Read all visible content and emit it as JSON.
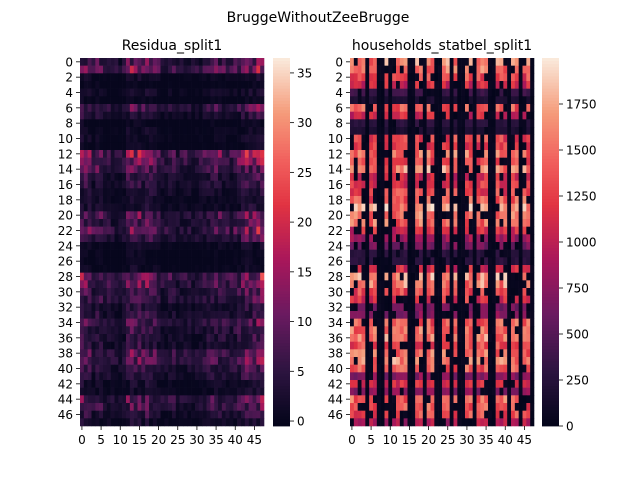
{
  "figure": {
    "suptitle": "BruggeWithoutZeeBrugge"
  },
  "chart_data": [
    {
      "type": "heatmap",
      "title": "Residua_split1",
      "xlabel": "",
      "ylabel": "",
      "rows": 48,
      "cols": 48,
      "x_tick_labels": [
        "0",
        "5",
        "10",
        "15",
        "20",
        "25",
        "30",
        "35",
        "40",
        "45"
      ],
      "y_tick_labels": [
        "0",
        "2",
        "4",
        "6",
        "8",
        "10",
        "12",
        "14",
        "16",
        "18",
        "20",
        "22",
        "24",
        "26",
        "28",
        "30",
        "32",
        "34",
        "36",
        "38",
        "40",
        "42",
        "44",
        "46"
      ],
      "vmin": -0.5,
      "vmax": 36.5,
      "colorbar_ticks": [
        0,
        5,
        10,
        15,
        20,
        25,
        30,
        35
      ],
      "colormap": "rocket",
      "row_levels": [
        12,
        16,
        4,
        3,
        5,
        3,
        12,
        7,
        3,
        4,
        4,
        3,
        18,
        16,
        13,
        9,
        8,
        7,
        5,
        6,
        14,
        12,
        16,
        10,
        4,
        3,
        3,
        4,
        16,
        14,
        11,
        11,
        7,
        8,
        12,
        10,
        9,
        8,
        14,
        13,
        10,
        8,
        5,
        5,
        13,
        11,
        8,
        5
      ],
      "col_levels": [
        1.1,
        1.0,
        0.9,
        0.6,
        0.9,
        0.8,
        0.5,
        0.6,
        0.5,
        0.5,
        0.4,
        0.5,
        1.0,
        1.1,
        1.0,
        1.1,
        0.9,
        1.1,
        0.9,
        0.8,
        0.7,
        0.5,
        0.5,
        0.6,
        0.6,
        0.4,
        0.5,
        0.5,
        0.5,
        0.4,
        0.5,
        0.5,
        0.6,
        0.7,
        0.8,
        0.8,
        0.8,
        0.7,
        0.6,
        0.6,
        0.7,
        0.8,
        0.9,
        1.1,
        1.0,
        1.0,
        1.2,
        1.3
      ]
    },
    {
      "type": "heatmap",
      "title": "households_statbel_split1",
      "xlabel": "",
      "ylabel": "",
      "rows": 48,
      "cols": 48,
      "x_tick_labels": [
        "0",
        "5",
        "10",
        "15",
        "20",
        "25",
        "30",
        "35",
        "40",
        "45"
      ],
      "y_tick_labels": [
        "0",
        "2",
        "4",
        "6",
        "8",
        "10",
        "12",
        "14",
        "16",
        "18",
        "20",
        "22",
        "24",
        "26",
        "28",
        "30",
        "32",
        "34",
        "36",
        "38",
        "40",
        "42",
        "44",
        "46"
      ],
      "vmin": 0,
      "vmax": 2000,
      "colorbar_ticks": [
        0,
        250,
        500,
        750,
        1000,
        1250,
        1500,
        1750
      ],
      "colormap": "rocket",
      "row_levels": [
        1700,
        1600,
        1400,
        1200,
        400,
        200,
        1500,
        1200,
        300,
        200,
        1400,
        1300,
        1600,
        1500,
        1700,
        1200,
        1300,
        1400,
        1500,
        1800,
        1700,
        1600,
        1200,
        900,
        700,
        300,
        300,
        1200,
        1800,
        1700,
        1400,
        1300,
        700,
        800,
        1500,
        1600,
        1700,
        1400,
        1600,
        1700,
        1500,
        800,
        1200,
        800,
        1600,
        1500,
        1400,
        1000
      ],
      "col_mask": [
        1,
        1,
        1,
        1,
        0,
        1,
        1,
        0,
        0,
        1,
        0,
        1,
        1,
        1,
        1,
        0,
        0,
        1,
        1,
        0,
        1,
        1,
        0,
        0,
        1,
        1,
        0,
        1,
        0,
        0,
        1,
        1,
        0,
        1,
        1,
        1,
        0,
        0,
        1,
        1,
        1,
        0,
        1,
        1,
        0,
        1,
        1,
        0
      ]
    }
  ]
}
